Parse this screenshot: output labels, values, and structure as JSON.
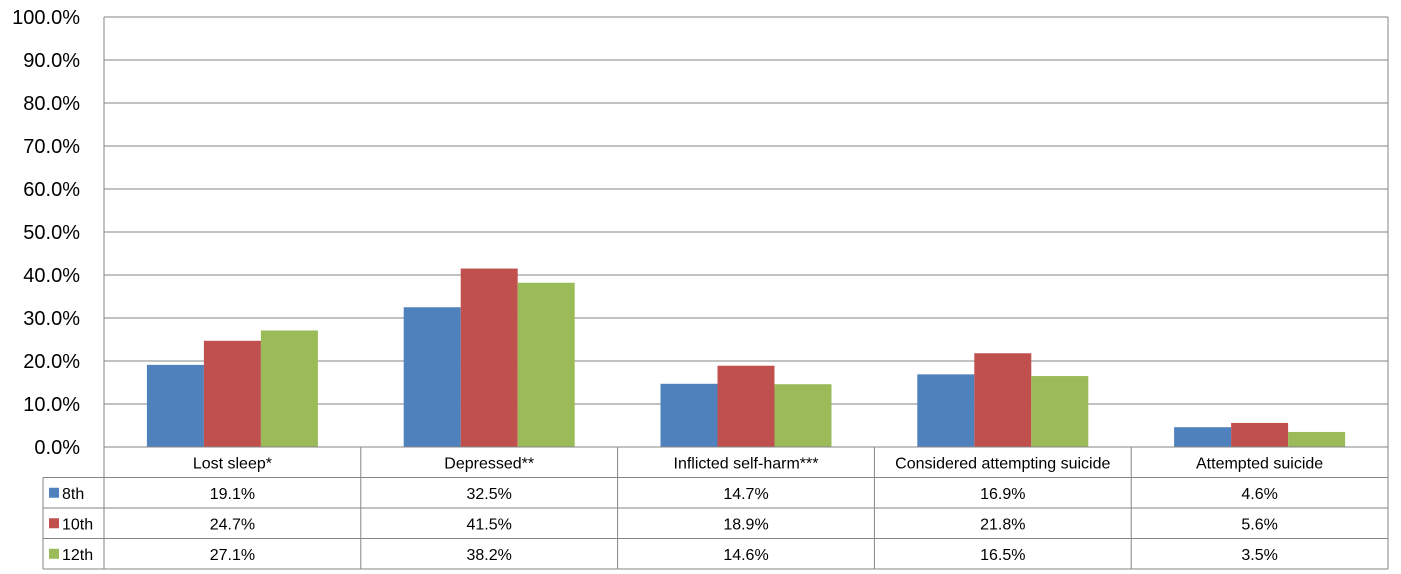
{
  "chart_data": {
    "type": "bar",
    "categories": [
      "Lost sleep*",
      "Depressed**",
      "Inflicted self-harm***",
      "Considered attempting suicide",
      "Attempted suicide"
    ],
    "series": [
      {
        "name": "8th",
        "color": "#4F81BD",
        "values": [
          19.1,
          32.5,
          14.7,
          16.9,
          4.6
        ],
        "labels": [
          "19.1%",
          "32.5%",
          "14.7%",
          "16.9%",
          "4.6%"
        ]
      },
      {
        "name": "10th",
        "color": "#C0504D",
        "values": [
          24.7,
          41.5,
          18.9,
          21.8,
          5.6
        ],
        "labels": [
          "24.7%",
          "41.5%",
          "18.9%",
          "21.8%",
          "5.6%"
        ]
      },
      {
        "name": "12th",
        "color": "#9BBB59",
        "values": [
          27.1,
          38.2,
          14.6,
          16.5,
          3.5
        ],
        "labels": [
          "27.1%",
          "38.2%",
          "14.6%",
          "16.5%",
          "3.5%"
        ]
      }
    ],
    "ylim": [
      0,
      100
    ],
    "yticks": [
      "0.0%",
      "10.0%",
      "20.0%",
      "30.0%",
      "40.0%",
      "50.0%",
      "60.0%",
      "70.0%",
      "80.0%",
      "90.0%",
      "100.0%"
    ],
    "grid": true,
    "legend": "data table",
    "title": "",
    "xlabel": "",
    "ylabel": ""
  }
}
